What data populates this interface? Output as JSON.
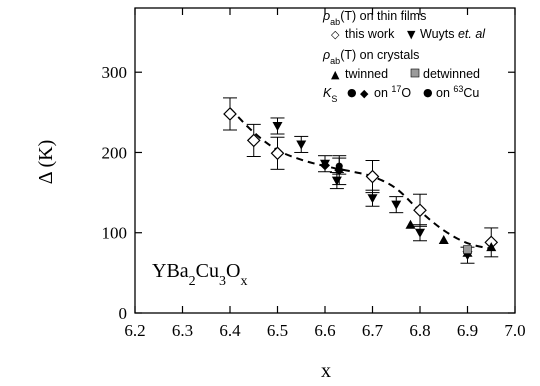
{
  "chart_data": {
    "type": "scatter",
    "xlabel": "x",
    "ylabel": "Δ (K)",
    "xlim": [
      6.2,
      7.0
    ],
    "ylim": [
      0,
      380
    ],
    "x_ticks": [
      "6.2",
      "6.3",
      "6.4",
      "6.5",
      "6.6",
      "6.7",
      "6.8",
      "6.9",
      "7.0"
    ],
    "y_ticks": [
      "0",
      "100",
      "200",
      "300"
    ],
    "x_tick_values": [
      6.2,
      6.3,
      6.4,
      6.5,
      6.6,
      6.7,
      6.8,
      6.9,
      7.0
    ],
    "y_tick_values": [
      0,
      100,
      200,
      300
    ],
    "annotation": {
      "main": "YBa",
      "sub1": "2",
      "mid1": "Cu",
      "sub2": "3",
      "mid2": "O",
      "sub3": "x"
    },
    "legend": {
      "group1": {
        "rho": "ρ",
        "rho_sub": "ab",
        "suffix": "(T) on thin films"
      },
      "this_work": "this work",
      "wuyts_name": "Wuyts ",
      "wuyts_etal": "et. al",
      "group2": {
        "rho": "ρ",
        "rho_sub": "ab",
        "suffix": "(T) on crystals"
      },
      "twinned": "twinned",
      "detwinned": "detwinned",
      "ks": {
        "K": "K",
        "sub": "S"
      },
      "on_o_text": "on ",
      "o_sup": "17",
      "o_el": "O",
      "on_cu_text": "on ",
      "cu_sup": "63",
      "cu_el": "Cu"
    },
    "series": [
      {
        "name": "this work",
        "marker": "open-diamond",
        "points": [
          {
            "x": 6.4,
            "y": 248,
            "err": 20
          },
          {
            "x": 6.45,
            "y": 215,
            "err": 20
          },
          {
            "x": 6.5,
            "y": 199,
            "err": 20
          },
          {
            "x": 6.7,
            "y": 170,
            "err": 20
          },
          {
            "x": 6.8,
            "y": 128,
            "err": 20
          },
          {
            "x": 6.95,
            "y": 88,
            "err": 18
          }
        ]
      },
      {
        "name": "Wuyts et. al",
        "marker": "filled-down-triangle",
        "points": [
          {
            "x": 6.5,
            "y": 233,
            "err": 10
          },
          {
            "x": 6.55,
            "y": 210,
            "err": 10
          },
          {
            "x": 6.6,
            "y": 186,
            "err": 10
          },
          {
            "x": 6.625,
            "y": 165,
            "err": 10
          },
          {
            "x": 6.7,
            "y": 143,
            "err": 10
          },
          {
            "x": 6.75,
            "y": 135,
            "err": 10
          },
          {
            "x": 6.8,
            "y": 100,
            "err": 10
          },
          {
            "x": 6.9,
            "y": 72,
            "err": 10
          }
        ]
      },
      {
        "name": "twinned",
        "marker": "filled-triangle",
        "points": [
          {
            "x": 6.78,
            "y": 110,
            "err": 0
          },
          {
            "x": 6.85,
            "y": 91,
            "err": 0
          },
          {
            "x": 6.9,
            "y": 75,
            "err": 0
          },
          {
            "x": 6.95,
            "y": 82,
            "err": 0
          }
        ]
      },
      {
        "name": "detwinned",
        "marker": "gray-square",
        "points": [
          {
            "x": 6.9,
            "y": 79,
            "err": 0
          }
        ]
      },
      {
        "name": "on 17O",
        "marker": "filled-diamond",
        "points": [
          {
            "x": 6.6,
            "y": 184,
            "err": 0
          },
          {
            "x": 6.63,
            "y": 178,
            "err": 18
          }
        ]
      },
      {
        "name": "on 63Cu",
        "marker": "filled-circle",
        "points": [
          {
            "x": 6.63,
            "y": 183,
            "err": 10
          }
        ]
      }
    ],
    "fit_curve": {
      "style": "dashed",
      "x": [
        6.4,
        6.45,
        6.5,
        6.55,
        6.6,
        6.65,
        6.7,
        6.75,
        6.8,
        6.85,
        6.9,
        6.95
      ],
      "y": [
        255,
        225,
        203,
        191,
        183,
        177,
        170,
        155,
        127,
        103,
        87,
        80
      ]
    }
  }
}
